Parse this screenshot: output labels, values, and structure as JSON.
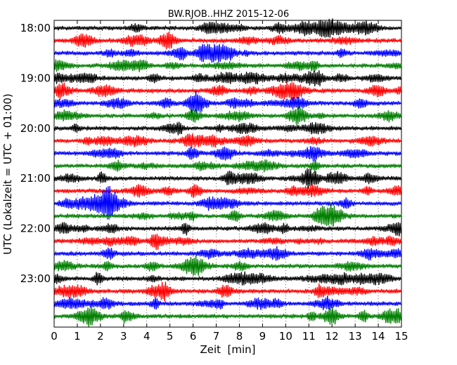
{
  "chart_data": {
    "type": "line",
    "title": "BW.RJOB..HHZ 2015-12-06",
    "xlabel": "Zeit  [min]",
    "ylabel": "UTC (Lokalzeit = UTC + 01:00)",
    "xlim": [
      0,
      15
    ],
    "xticks": [
      "0",
      "1",
      "2",
      "3",
      "4",
      "5",
      "6",
      "7",
      "8",
      "9",
      "10",
      "11",
      "12",
      "13",
      "14",
      "15"
    ],
    "yticks": [
      "18:00",
      "19:00",
      "20:00",
      "21:00",
      "22:00",
      "23:00"
    ],
    "traces_per_hour": 4,
    "minutes_per_trace": 15,
    "trace_count": 24,
    "trace_colors": [
      "#000000",
      "#ff0000",
      "#0000ff",
      "#008000"
    ],
    "grid": "vertical dotted lines at each minute"
  }
}
